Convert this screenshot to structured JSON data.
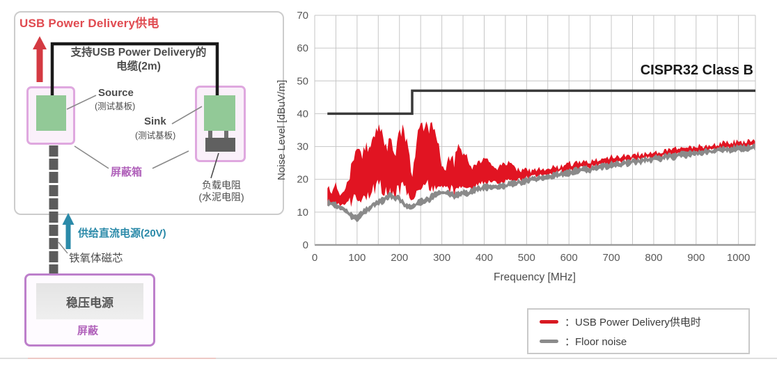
{
  "diagram": {
    "title": "USB Power Delivery供电",
    "cable_label_line1": "支持USB Power Delivery的",
    "cable_label_line2": "电缆(2m)",
    "source_label": "Source",
    "source_sub": "(测试基板)",
    "sink_label": "Sink",
    "sink_sub": "(测试基板)",
    "shield_box_label": "屏蔽箱",
    "load_resistor_line1": "负载电阻",
    "load_resistor_line2": "(水泥电阻)",
    "dc_supply_label": "供给直流电源(20V)",
    "ferrite_label": "铁氧体磁芯",
    "psu_label": "稳压电源",
    "psu_shield_label": "屏蔽",
    "colors": {
      "title_red": "#e04a50",
      "arrow_red": "#d43a42",
      "shield_pink_border": "#dfa8df",
      "psu_purple_border": "#bd7fcb",
      "purple_text": "#b163bb",
      "teal": "#2b8aa9",
      "board_green": "#92c997",
      "cable_black": "#1a1a1a",
      "ferrite_gray": "#5c5c5c"
    }
  },
  "chart": {
    "y_axis_title": "Noise Level [dBuV/m]",
    "x_axis_title": "Frequency [MHz]",
    "limit_label": "CISPR32 Class B",
    "legend": [
      {
        "swatch_color": "#d81a22",
        "label": "：USB Power Delivery供电时"
      },
      {
        "swatch_color": "#8b8b8b",
        "label": "：Floor noise"
      }
    ]
  },
  "chart_data": {
    "type": "line",
    "xlabel": "Frequency [MHz]",
    "ylabel": "Noise Level [dBuV/m]",
    "xlim": [
      0,
      1040
    ],
    "ylim": [
      0,
      70
    ],
    "x_major_ticks": [
      0,
      100,
      200,
      300,
      400,
      500,
      600,
      700,
      800,
      900,
      1000
    ],
    "x_minor_step": 50,
    "y_ticks": [
      0,
      10,
      20,
      30,
      40,
      50,
      60,
      70
    ],
    "grid": true,
    "legend_position": "bottom-right-outside",
    "limit_line": {
      "label": "CISPR32 Class B",
      "color": "#3a3a3a",
      "points": [
        [
          30,
          40
        ],
        [
          230,
          40
        ],
        [
          230,
          47
        ],
        [
          1040,
          47
        ]
      ]
    },
    "frequencies_mhz": [
      30,
      40,
      50,
      60,
      70,
      80,
      90,
      100,
      110,
      120,
      130,
      140,
      150,
      160,
      170,
      180,
      190,
      200,
      210,
      220,
      230,
      240,
      250,
      260,
      270,
      280,
      290,
      300,
      310,
      320,
      330,
      340,
      350,
      360,
      370,
      380,
      390,
      400,
      410,
      420,
      430,
      440,
      450,
      460,
      470,
      480,
      490,
      500,
      510,
      520,
      530,
      540,
      550,
      560,
      570,
      580,
      590,
      600,
      610,
      620,
      630,
      640,
      650,
      660,
      670,
      680,
      690,
      700,
      710,
      720,
      730,
      740,
      750,
      760,
      770,
      780,
      790,
      800,
      810,
      820,
      830,
      840,
      850,
      860,
      870,
      880,
      890,
      900,
      910,
      920,
      930,
      940,
      950,
      960,
      970,
      980,
      990,
      1000,
      1010,
      1020,
      1030,
      1040
    ],
    "series": [
      {
        "name": "USB Power Delivery供电时",
        "color": "#e11422",
        "style": "jagged-band",
        "upper": [
          18,
          16,
          18.5,
          15.5,
          17,
          20,
          25,
          28.5,
          27,
          29.5,
          31,
          34,
          36,
          33,
          29.5,
          31.5,
          28.5,
          34,
          35.5,
          30,
          20,
          32.5,
          35,
          36.5,
          36,
          35,
          31,
          25.5,
          24.5,
          26.5,
          25.5,
          31,
          27.5,
          27,
          23,
          24.5,
          25.5,
          26,
          25.5,
          24,
          23,
          24.5,
          25,
          25,
          23.5,
          23,
          22.5,
          23,
          22.5,
          23,
          23.5,
          23,
          23.5,
          24,
          23.5,
          24,
          24.5,
          25,
          24.5,
          25,
          25.5,
          25,
          25.5,
          26,
          25.5,
          26,
          26.5,
          27,
          26.5,
          27,
          27.5,
          27,
          27.5,
          28,
          27.5,
          28,
          28.5,
          28.5,
          28,
          28.5,
          29,
          29,
          29.5,
          29.5,
          29,
          29.5,
          30,
          30,
          30.5,
          30,
          30.5,
          31,
          30.5,
          31,
          31.5,
          31,
          31.5,
          31.5,
          31,
          31.5,
          32,
          31.5
        ],
        "lower": [
          12.5,
          12,
          13,
          12,
          12.5,
          13,
          14,
          15,
          14.5,
          15.5,
          16,
          17,
          20,
          17,
          16,
          15.5,
          16,
          17,
          19,
          14.5,
          13,
          15,
          18,
          19,
          18.5,
          18,
          17,
          16.5,
          17,
          17.5,
          17,
          18,
          17.5,
          17.5,
          17.5,
          18,
          18.5,
          19,
          19,
          19,
          18.5,
          19,
          19.5,
          19.5,
          19.5,
          19.5,
          20,
          20.5,
          20.5,
          21,
          21,
          21.5,
          21.5,
          22,
          22,
          22.5,
          22.5,
          23,
          23,
          23.5,
          23.5,
          23.5,
          24,
          24,
          24,
          24.5,
          24.5,
          25,
          25,
          25.5,
          25.5,
          25.5,
          26,
          26,
          26,
          26.5,
          26.5,
          26.5,
          27,
          27,
          27,
          27.5,
          27.5,
          27.5,
          27.5,
          28,
          28,
          28,
          28.5,
          28.5,
          28.5,
          29,
          29,
          29,
          29,
          29.5,
          29.5,
          29.5,
          29.5,
          29.5,
          30,
          30
        ]
      },
      {
        "name": "Floor noise",
        "color": "#8a8a8a",
        "style": "jagged-line",
        "values": [
          13,
          12.5,
          12,
          11.5,
          11,
          9.5,
          8.5,
          8,
          9.5,
          10.5,
          11.5,
          12.5,
          13,
          13.5,
          14.5,
          15,
          14.5,
          14,
          12.5,
          11.5,
          11.5,
          12.5,
          13,
          13.5,
          14,
          15,
          15.5,
          16,
          16,
          15.5,
          15,
          15.5,
          16,
          15.5,
          16.5,
          17,
          17,
          17.5,
          17.5,
          17.5,
          17.5,
          18,
          18,
          18.5,
          18.5,
          19,
          19,
          19.5,
          20,
          20,
          20.5,
          20.5,
          21,
          21,
          21.5,
          21.5,
          22,
          22,
          22.5,
          22.5,
          23,
          23,
          23,
          23.5,
          23.5,
          24,
          24,
          24.5,
          24.5,
          24.5,
          25,
          25,
          25.5,
          25.5,
          25.5,
          26,
          26,
          26.5,
          26.5,
          26.5,
          27,
          27,
          27,
          27.5,
          27.5,
          27.5,
          28,
          28,
          28,
          28.5,
          28.5,
          28.5,
          29,
          29,
          29,
          29,
          29.5,
          29.5,
          29.5,
          29.5,
          29.5,
          30
        ]
      }
    ]
  }
}
